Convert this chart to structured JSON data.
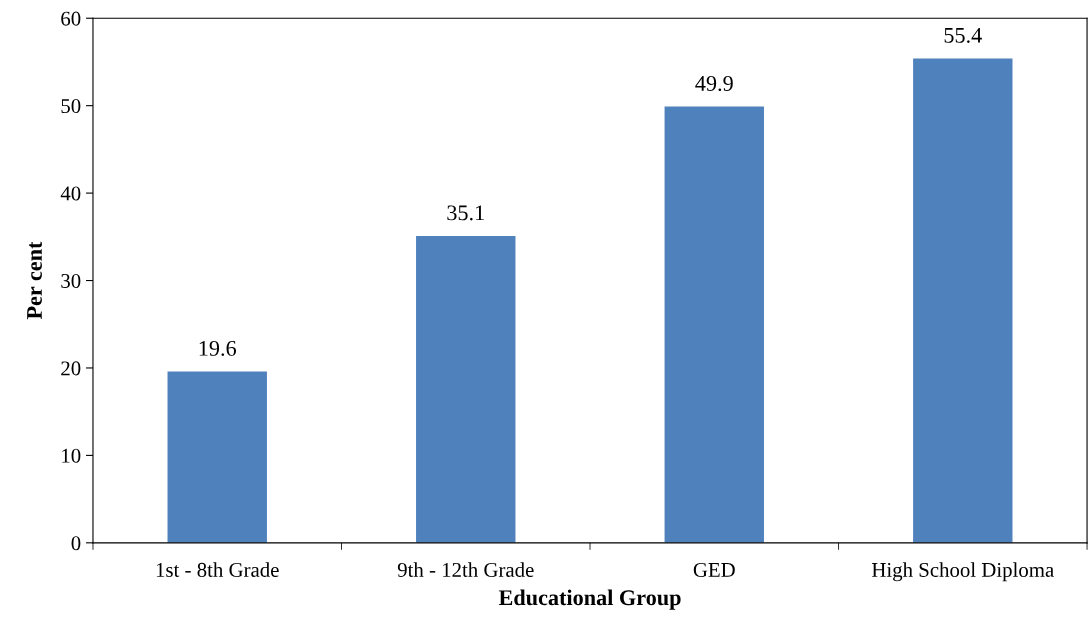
{
  "chart_data": {
    "type": "bar",
    "xlabel": "Educational Group",
    "ylabel": "Per cent",
    "categories": [
      "1st - 8th Grade",
      "9th - 12th Grade",
      "GED",
      "High School Diploma"
    ],
    "values": [
      19.6,
      35.1,
      49.9,
      55.4
    ],
    "color": "#4f81bd",
    "ylim": [
      0,
      60
    ],
    "yticks": [
      0,
      10,
      20,
      30,
      40,
      50,
      60
    ],
    "grid": false,
    "data_labels": true
  }
}
